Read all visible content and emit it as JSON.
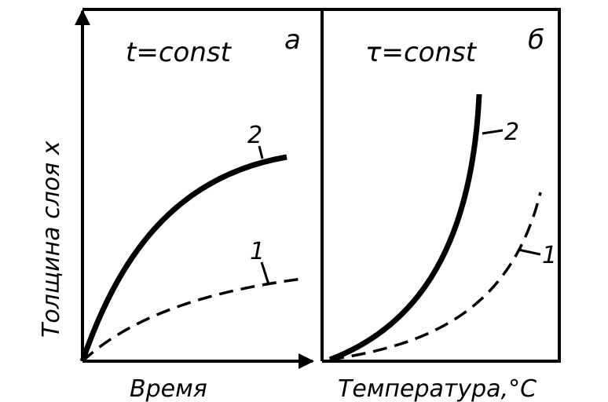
{
  "y_axis_label": "Толщина слоя x",
  "panels": [
    {
      "letter": "а",
      "condition": "t=const",
      "x_axis_label": "Время",
      "curves": [
        {
          "label": "2"
        },
        {
          "label": "1"
        }
      ]
    },
    {
      "letter": "б",
      "condition": "τ=const",
      "x_axis_label": "Температура,°C",
      "curves": [
        {
          "label": "2"
        },
        {
          "label": "1"
        }
      ]
    }
  ]
}
